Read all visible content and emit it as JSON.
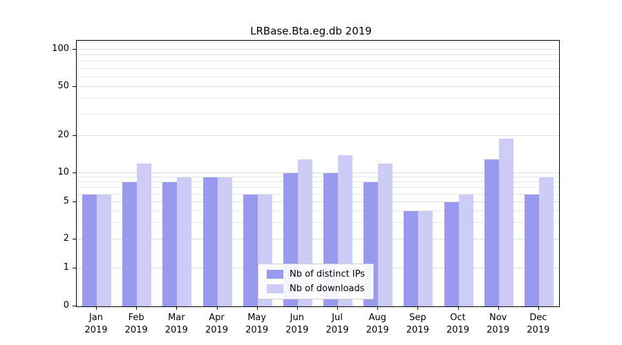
{
  "title": "LRBase.Bta.eg.db 2019",
  "chart_data": {
    "type": "bar",
    "title": "LRBase.Bta.eg.db 2019",
    "categories": [
      "Jan",
      "Feb",
      "Mar",
      "Apr",
      "May",
      "Jun",
      "Jul",
      "Aug",
      "Sep",
      "Oct",
      "Nov",
      "Dec"
    ],
    "year": "2019",
    "series": [
      {
        "name": "Nb of distinct IPs",
        "color": "#9999ee",
        "values": [
          6,
          8,
          8,
          9,
          6,
          10,
          10,
          8,
          4,
          5,
          13,
          6
        ]
      },
      {
        "name": "Nb of downloads",
        "color": "#ccccf7",
        "values": [
          6,
          12,
          9,
          9,
          6,
          13,
          14,
          12,
          4,
          6,
          19,
          9
        ]
      }
    ],
    "xlabel": "",
    "ylabel": "",
    "yticks": [
      0,
      1,
      2,
      5,
      10,
      20,
      50,
      100
    ],
    "ylim": [
      0,
      100
    ],
    "yscale": "symlog",
    "grid": true,
    "legend_position": "lower center"
  }
}
